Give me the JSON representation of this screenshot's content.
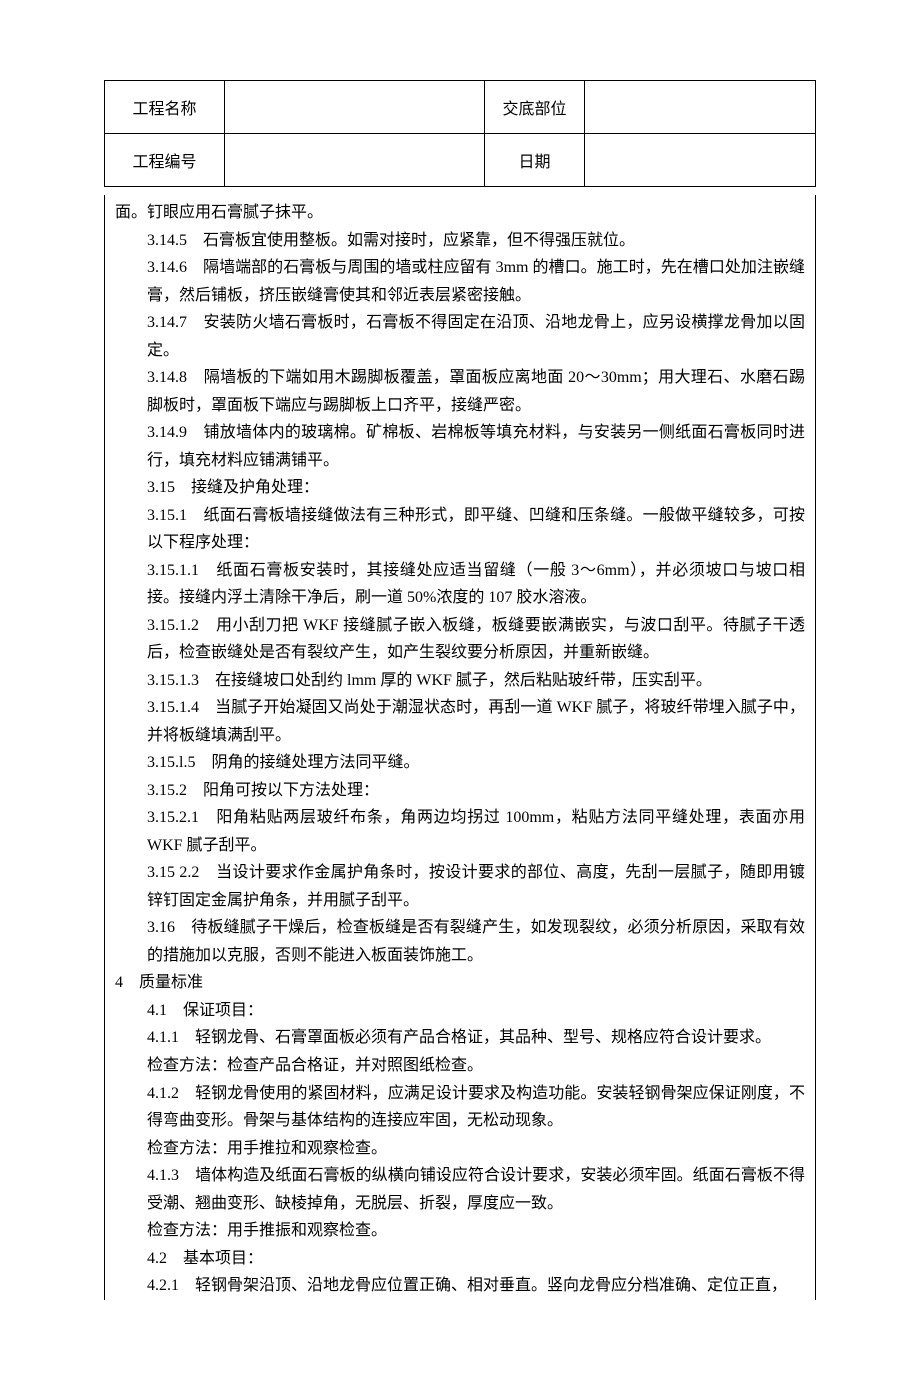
{
  "header": {
    "row1": {
      "label1": "工程名称",
      "val1": "",
      "label2": "交底部位",
      "val2": ""
    },
    "row2": {
      "label1": "工程编号",
      "val1": "",
      "label2": "日期",
      "val2": ""
    }
  },
  "body": {
    "p01": "面。钉眼应用石膏腻子抹平。",
    "p02": "3.14.5　石膏板宜使用整板。如需对接时，应紧靠，但不得强压就位。",
    "p03": "3.14.6　隔墙端部的石膏板与周围的墙或柱应留有 3mm 的槽口。施工时，先在槽口处加注嵌缝膏，然后铺板，挤压嵌缝膏使其和邻近表层紧密接触。",
    "p04": "3.14.7　安装防火墙石膏板时，石膏板不得固定在沿顶、沿地龙骨上，应另设横撑龙骨加以固定。",
    "p05": "3.14.8　隔墙板的下端如用木踢脚板覆盖，罩面板应离地面 20～30mm；用大理石、水磨石踢脚板时，罩面板下端应与踢脚板上口齐平，接缝严密。",
    "p06": "3.14.9　铺放墙体内的玻璃棉。矿棉板、岩棉板等填充材料，与安装另一侧纸面石膏板同时进行，填充材料应铺满铺平。",
    "p07": "3.15　接缝及护角处理：",
    "p08": "3.15.1　纸面石膏板墙接缝做法有三种形式，即平缝、凹缝和压条缝。一般做平缝较多，可按以下程序处理：",
    "p09": "3.15.1.1　纸面石膏板安装时，其接缝处应适当留缝（一般 3～6mm），并必须坡口与坡口相接。接缝内浮土清除干净后，刷一道 50%浓度的 107 胶水溶液。",
    "p10": "3.15.1.2　用小刮刀把 WKF 接缝腻子嵌入板缝，板缝要嵌满嵌实，与波口刮平。待腻子干透后，检查嵌缝处是否有裂纹产生，如产生裂纹要分析原因，并重新嵌缝。",
    "p11": "3.15.1.3　在接缝坡口处刮约 lmm 厚的 WKF 腻子，然后粘贴玻纤带，压实刮平。",
    "p12": "3.15.1.4　当腻子开始凝固又尚处于潮湿状态时，再刮一道 WKF 腻子，将玻纤带埋入腻子中，并将板缝填满刮平。",
    "p13": "3.15.l.5　阴角的接缝处理方法同平缝。",
    "p14": "3.15.2　阳角可按以下方法处理：",
    "p15": "3.15.2.1　阳角粘贴两层玻纤布条，角两边均拐过 100mm，粘贴方法同平缝处理，表面亦用WKF 腻子刮平。",
    "p16": "3.15 2.2　当设计要求作金属护角条时，按设计要求的部位、高度，先刮一层腻子，随即用镀锌钉固定金属护角条，并用腻子刮平。",
    "p17": "3.16　待板缝腻子干燥后，检查板缝是否有裂缝产生，如发现裂纹，必须分析原因，采取有效的措施加以克服，否则不能进入板面装饰施工。",
    "p18": "4　质量标准",
    "p19": "4.1　保证项目：",
    "p20": "4.1.1　轻钢龙骨、石膏罩面板必须有产品合格证，其品种、型号、规格应符合设计要求。",
    "p21": "检查方法：检查产品合格证，并对照图纸检查。",
    "p22": "4.1.2　轻钢龙骨使用的紧固材料，应满足设计要求及构造功能。安装轻钢骨架应保证刚度，不得弯曲变形。骨架与基体结构的连接应牢固，无松动现象。",
    "p23": "检查方法：用手推拉和观察检查。",
    "p24": "4.1.3　墙体构造及纸面石膏板的纵横向铺设应符合设计要求，安装必须牢固。纸面石膏板不得受潮、翘曲变形、缺棱掉角，无脱层、折裂，厚度应一致。",
    "p25": "检查方法：用手推振和观察检查。",
    "p26": "4.2　基本项目：",
    "p27": "4.2.1　轻钢骨架沿顶、沿地龙骨应位置正确、相对垂直。竖向龙骨应分档准确、定位正直，"
  }
}
